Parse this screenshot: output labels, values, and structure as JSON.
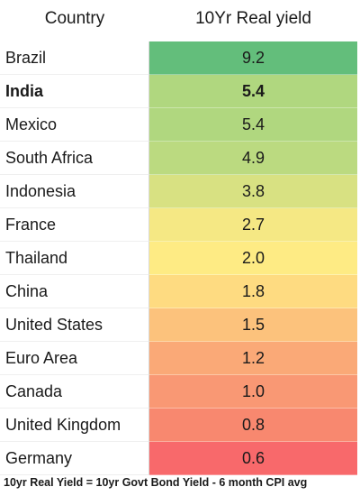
{
  "chart_data": {
    "type": "table",
    "columns": [
      "Country",
      "10Yr Real yield"
    ],
    "highlighted_row": "India",
    "rows": [
      {
        "country": "Brazil",
        "value": "9.2",
        "color": "#63be7b"
      },
      {
        "country": "India",
        "value": "5.4",
        "color": "#b0d77f"
      },
      {
        "country": "Mexico",
        "value": "5.4",
        "color": "#b0d77f"
      },
      {
        "country": "South Africa",
        "value": "4.9",
        "color": "#bbda80"
      },
      {
        "country": "Indonesia",
        "value": "3.8",
        "color": "#d8e182"
      },
      {
        "country": "France",
        "value": "2.7",
        "color": "#f5e884"
      },
      {
        "country": "Thailand",
        "value": "2.0",
        "color": "#feeb84"
      },
      {
        "country": "China",
        "value": "1.8",
        "color": "#fedb81"
      },
      {
        "country": "United States",
        "value": "1.5",
        "color": "#fcc27c"
      },
      {
        "country": "Euro Area",
        "value": "1.2",
        "color": "#faa977"
      },
      {
        "country": "Canada",
        "value": "1.0",
        "color": "#f99874"
      },
      {
        "country": "United Kingdom",
        "value": "0.8",
        "color": "#f8886f"
      },
      {
        "country": "Germany",
        "value": "0.6",
        "color": "#f8696b"
      }
    ]
  },
  "footnote": "10yr Real Yield = 10yr Govt Bond Yield - 6 month CPI avg"
}
